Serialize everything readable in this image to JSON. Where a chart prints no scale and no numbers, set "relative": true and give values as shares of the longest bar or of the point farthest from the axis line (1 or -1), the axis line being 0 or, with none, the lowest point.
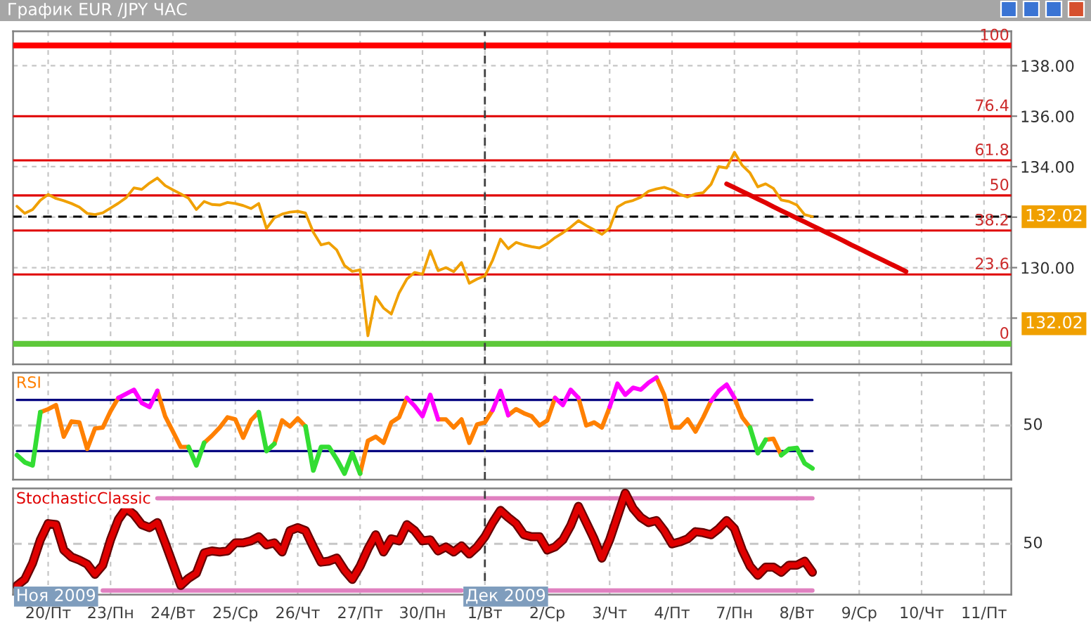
{
  "chart_data": [
    {
      "type": "line",
      "title": "График EUR /JPY ЧАС",
      "categories": [
        null,
        null,
        null,
        null,
        "20/Пт",
        null,
        null,
        null,
        null,
        null,
        null,
        null,
        "23/Пн",
        null,
        null,
        null,
        null,
        null,
        null,
        null,
        "24/Вт",
        null,
        null,
        null,
        null,
        null,
        null,
        null,
        "25/Ср",
        null,
        null,
        null,
        null,
        null,
        null,
        null,
        "26/Чт",
        null,
        null,
        null,
        null,
        null,
        null,
        null,
        "27/Пт",
        null,
        null,
        null,
        null,
        null,
        null,
        null,
        "30/Пн",
        null,
        null,
        null,
        null,
        null,
        null,
        null,
        "1/Вт",
        null,
        null,
        null,
        null,
        null,
        null,
        null,
        "2/Ср",
        null,
        null,
        null,
        null,
        null,
        null,
        null,
        "3/Чт",
        null,
        null,
        null,
        null,
        null,
        null,
        null,
        "4/Пт",
        null,
        null,
        null,
        null,
        null,
        null,
        null,
        "7/Пн",
        null,
        null,
        null,
        null,
        null,
        null,
        null,
        "8/Вт",
        null,
        null,
        null,
        null,
        null,
        null,
        null,
        "9/Ср",
        null,
        null,
        null,
        null,
        null,
        null,
        null,
        "10/Чт",
        null,
        null,
        null,
        null,
        null,
        null,
        null,
        "11/Пт",
        null,
        null,
        null
      ],
      "series": [
        {
          "color": "#f0a000",
          "values": [
            132.43,
            132.15,
            132.3,
            132.67,
            132.9,
            132.74,
            132.65,
            132.54,
            132.4,
            132.15,
            132.1,
            132.17,
            132.36,
            132.55,
            132.77,
            133.16,
            133.1,
            133.35,
            133.55,
            133.25,
            133.08,
            132.92,
            132.75,
            132.3,
            132.62,
            132.5,
            132.48,
            132.58,
            132.54,
            132.46,
            132.34,
            132.54,
            131.55,
            131.97,
            132.12,
            132.2,
            132.23,
            132.16,
            131.4,
            130.9,
            130.98,
            130.7,
            130.08,
            129.85,
            129.91,
            127.3,
            128.85,
            128.4,
            128.16,
            129.0,
            129.55,
            129.81,
            129.74,
            130.67,
            129.88,
            130.0,
            129.84,
            130.2,
            129.38,
            129.55,
            129.67,
            130.3,
            131.13,
            130.75,
            131.0,
            130.9,
            130.83,
            130.78,
            130.95,
            131.19,
            131.38,
            131.6,
            131.86,
            131.67,
            131.5,
            131.32,
            131.57,
            132.4,
            132.58,
            132.66,
            132.79,
            133.03,
            133.12,
            133.18,
            133.08,
            132.9,
            132.8,
            132.92,
            132.97,
            133.3,
            134.0,
            133.95,
            134.57,
            134.05,
            133.75,
            133.2,
            133.32,
            133.14,
            132.68,
            132.62,
            132.48,
            132.1,
            132.02,
            null,
            null,
            null,
            null,
            null,
            null,
            null,
            null,
            null,
            null,
            null,
            null,
            null,
            null,
            null,
            null,
            null,
            null,
            null,
            null,
            null,
            null,
            null,
            null,
            null
          ]
        },
        {
          "type": "line",
          "color": "#e00000",
          "values": [
            null,
            null,
            null,
            null,
            null,
            null,
            null,
            null,
            null,
            null,
            null,
            null,
            null,
            null,
            null,
            null,
            null,
            null,
            null,
            null,
            null,
            null,
            null,
            null,
            null,
            null,
            null,
            null,
            null,
            null,
            null,
            null,
            null,
            null,
            null,
            null,
            null,
            null,
            null,
            null,
            null,
            null,
            null,
            null,
            null,
            null,
            null,
            null,
            null,
            null,
            null,
            null,
            null,
            null,
            null,
            null,
            null,
            null,
            null,
            null,
            null,
            null,
            null,
            null,
            null,
            null,
            null,
            null,
            null,
            null,
            null,
            null,
            null,
            null,
            null,
            null,
            null,
            null,
            null,
            null,
            null,
            null,
            null,
            null,
            null,
            null,
            null,
            null,
            null,
            null,
            null,
            133.32,
            133.17,
            133.02,
            132.87,
            132.72,
            132.57,
            132.41,
            132.26,
            132.11,
            131.96,
            131.81,
            131.66,
            131.51,
            131.36,
            131.21,
            131.06,
            130.9,
            130.75,
            130.6,
            130.45,
            130.3,
            130.15,
            130.0,
            129.85,
            null,
            null,
            null,
            null,
            null,
            null,
            null,
            null,
            null,
            null,
            null,
            null,
            null
          ]
        }
      ],
      "ylim": [
        126.17,
        139.36
      ],
      "yticks": [
        {
          "value": 128,
          "label": null
        },
        {
          "value": 130,
          "label": "130.00"
        },
        {
          "value": 132,
          "label": null
        },
        {
          "value": 134,
          "label": "134.00"
        },
        {
          "value": 136,
          "label": "136.00"
        },
        {
          "value": 138,
          "label": "138.00"
        }
      ],
      "grid": true,
      "tick_labels": "y",
      "ref_lines": [
        {
          "axis": "y",
          "value": 138.8,
          "color": "#ff0000"
        },
        {
          "axis": "y",
          "value": 136.0,
          "color": "#e00000"
        },
        {
          "axis": "y",
          "value": 134.25,
          "color": "#e00000"
        },
        {
          "axis": "y",
          "value": 132.86,
          "color": "#e00000"
        },
        {
          "axis": "y",
          "value": 131.47,
          "color": "#e00000"
        },
        {
          "axis": "y",
          "value": 129.73,
          "color": "#e00000"
        },
        {
          "axis": "y",
          "value": 126.98,
          "color": "#5ec83a"
        },
        {
          "axis": "y",
          "value": 132.02,
          "label": "132.02",
          "color": "#000000",
          "line_style": "dashed"
        },
        {
          "axis": "x",
          "value": "1/Вт",
          "color": "#404040",
          "line_style": "dashed"
        }
      ],
      "annotations": [
        "132.02",
        {
          "text": "100",
          "y": 138.8
        },
        {
          "text": "76.4",
          "y": 136.0
        },
        {
          "text": "61.8",
          "y": 134.25
        },
        {
          "text": "50",
          "y": 132.86
        },
        {
          "text": "38.2",
          "y": 131.47
        },
        {
          "text": "23.6",
          "y": 129.73
        },
        {
          "text": "0",
          "y": 126.98
        }
      ]
    },
    {
      "type": "line",
      "title": "RSI",
      "relative": true,
      "categories": [
        null,
        null,
        null,
        null,
        "20/Пт",
        null,
        null,
        null,
        null,
        null,
        null,
        null,
        "23/Пн",
        null,
        null,
        null,
        null,
        null,
        null,
        null,
        "24/Вт",
        null,
        null,
        null,
        null,
        null,
        null,
        null,
        "25/Ср",
        null,
        null,
        null,
        null,
        null,
        null,
        null,
        "26/Чт",
        null,
        null,
        null,
        null,
        null,
        null,
        null,
        "27/Пт",
        null,
        null,
        null,
        null,
        null,
        null,
        null,
        "30/Пн",
        null,
        null,
        null,
        null,
        null,
        null,
        null,
        "1/Вт",
        null,
        null,
        null,
        null,
        null,
        null,
        null,
        "2/Ср",
        null,
        null,
        null,
        null,
        null,
        null,
        null,
        "3/Чт",
        null,
        null,
        null,
        null,
        null,
        null,
        null,
        "4/Пт",
        null,
        null,
        null,
        null,
        null,
        null,
        null,
        "7/Пн",
        null,
        null,
        null,
        null,
        null,
        null,
        null,
        "8/Вт",
        null,
        null,
        null,
        null,
        null,
        null,
        null,
        "9/Ср",
        null,
        null,
        null,
        null,
        null,
        null,
        null,
        "10/Чт",
        null,
        null,
        null,
        null,
        null,
        null,
        null,
        "11/Пт",
        null,
        null,
        null
      ],
      "series": [
        {
          "color": "#ff8000",
          "values": [
            null,
            null,
            null,
            0.66,
            0.69,
            0.73,
            0.42,
            0.57,
            0.56,
            0.3,
            0.5,
            0.51,
            0.67,
            0.8,
            null,
            null,
            null,
            null,
            0.87,
            0.62,
            0.47,
            0.32,
            0.32,
            null,
            0.36,
            0.43,
            0.51,
            0.61,
            0.59,
            0.41,
            0.58,
            0.66,
            null,
            0.35,
            0.58,
            0.52,
            0.6,
            0.52,
            null,
            null,
            null,
            null,
            null,
            null,
            0.06,
            0.38,
            0.42,
            0.36,
            0.56,
            0.61,
            0.8,
            null,
            null,
            null,
            0.59,
            0.59,
            0.51,
            0.59,
            0.36,
            0.54,
            0.56,
            0.68,
            null,
            0.63,
            0.69,
            0.65,
            0.62,
            0.53,
            0.58,
            0.8,
            null,
            null,
            0.8,
            0.53,
            0.56,
            0.51,
            0.71,
            null,
            null,
            null,
            null,
            null,
            1.0,
            0.83,
            0.51,
            0.51,
            0.59,
            0.47,
            0.61,
            0.77,
            null,
            null,
            0.8,
            0.61,
            0.51,
            null,
            0.39,
            0.4,
            0.24,
            null,
            null,
            null,
            null,
            null,
            null,
            null,
            null,
            null,
            null,
            null,
            null,
            null,
            null,
            null,
            null,
            null,
            null,
            null,
            null,
            null,
            null,
            null,
            null,
            null,
            null,
            null,
            null,
            null
          ]
        },
        {
          "color": "#ff00ff",
          "values": [
            null,
            null,
            null,
            null,
            null,
            null,
            null,
            null,
            null,
            null,
            null,
            null,
            null,
            0.8,
            0.84,
            0.88,
            0.75,
            0.71,
            0.87,
            null,
            null,
            null,
            null,
            null,
            null,
            null,
            null,
            null,
            null,
            null,
            null,
            null,
            null,
            null,
            null,
            null,
            null,
            null,
            null,
            null,
            null,
            null,
            null,
            null,
            null,
            null,
            null,
            null,
            null,
            null,
            0.8,
            0.72,
            0.62,
            0.83,
            0.59,
            null,
            null,
            null,
            null,
            null,
            null,
            0.68,
            0.87,
            0.63,
            null,
            null,
            null,
            null,
            null,
            0.8,
            0.73,
            0.88,
            0.8,
            null,
            null,
            null,
            0.71,
            0.94,
            0.83,
            0.9,
            0.88,
            0.95,
            1.0,
            null,
            null,
            null,
            null,
            null,
            null,
            0.77,
            0.87,
            0.93,
            0.8,
            null,
            null,
            null,
            null,
            null,
            null,
            null,
            null,
            null,
            null,
            null,
            null,
            null,
            null,
            null,
            null,
            null,
            null,
            null,
            null,
            null,
            null,
            null,
            null,
            null,
            null,
            null,
            null,
            null,
            null,
            null,
            null,
            null,
            null,
            null
          ]
        },
        {
          "color": "#33dd33",
          "values": [
            0.24,
            0.17,
            0.14,
            0.66,
            null,
            null,
            null,
            null,
            null,
            null,
            null,
            null,
            null,
            null,
            null,
            null,
            null,
            null,
            null,
            null,
            null,
            null,
            0.32,
            0.14,
            0.36,
            null,
            null,
            null,
            null,
            null,
            null,
            0.66,
            0.28,
            0.35,
            null,
            null,
            null,
            0.52,
            0.09,
            0.32,
            0.32,
            0.2,
            0.06,
            0.26,
            0.06,
            null,
            null,
            null,
            null,
            null,
            null,
            null,
            null,
            null,
            null,
            null,
            null,
            null,
            null,
            null,
            null,
            null,
            null,
            null,
            null,
            null,
            null,
            null,
            null,
            null,
            null,
            null,
            null,
            null,
            null,
            null,
            null,
            null,
            null,
            null,
            null,
            null,
            null,
            null,
            null,
            null,
            null,
            null,
            null,
            null,
            null,
            null,
            null,
            null,
            0.51,
            0.26,
            0.39,
            null,
            0.24,
            0.3,
            0.31,
            0.16,
            0.11,
            null,
            null,
            null,
            null,
            null,
            null,
            null,
            null,
            null,
            null,
            null,
            null,
            null,
            null,
            null,
            null,
            null,
            null,
            null,
            null,
            null,
            null,
            null,
            null,
            null
          ]
        },
        {
          "color": "#000080",
          "values": [
            0.78,
            0.78,
            0.78,
            0.78,
            0.78,
            0.78,
            0.78,
            0.78,
            0.78,
            0.78,
            0.78,
            0.78,
            0.78,
            0.78,
            0.78,
            0.78,
            0.78,
            0.78,
            0.78,
            0.78,
            0.78,
            0.78,
            0.78,
            0.78,
            0.78,
            0.78,
            0.78,
            0.78,
            0.78,
            0.78,
            0.78,
            0.78,
            0.78,
            0.78,
            0.78,
            0.78,
            0.78,
            0.78,
            0.78,
            0.78,
            0.78,
            0.78,
            0.78,
            0.78,
            0.78,
            0.78,
            0.78,
            0.78,
            0.78,
            0.78,
            0.78,
            0.78,
            0.78,
            0.78,
            0.78,
            0.78,
            0.78,
            0.78,
            0.78,
            0.78,
            0.78,
            0.78,
            0.78,
            0.78,
            0.78,
            0.78,
            0.78,
            0.78,
            0.78,
            0.78,
            0.78,
            0.78,
            0.78,
            0.78,
            0.78,
            0.78,
            0.78,
            0.78,
            0.78,
            0.78,
            0.78,
            0.78,
            0.78,
            0.78,
            0.78,
            0.78,
            0.78,
            0.78,
            0.78,
            0.78,
            0.78,
            0.78,
            0.78,
            0.78,
            0.78,
            0.78,
            0.78,
            0.78,
            0.78,
            0.78,
            0.78,
            0.78,
            0.78,
            null,
            null,
            null,
            null,
            null,
            null,
            null,
            null,
            null,
            null,
            null,
            null,
            null,
            null,
            null,
            null,
            null,
            null,
            null,
            null,
            null,
            null,
            null,
            null,
            null
          ]
        },
        {
          "color": "#000080",
          "values": [
            0.28,
            0.28,
            0.28,
            0.28,
            0.28,
            0.28,
            0.28,
            0.28,
            0.28,
            0.28,
            0.28,
            0.28,
            0.28,
            0.28,
            0.28,
            0.28,
            0.28,
            0.28,
            0.28,
            0.28,
            0.28,
            0.28,
            0.28,
            0.28,
            0.28,
            0.28,
            0.28,
            0.28,
            0.28,
            0.28,
            0.28,
            0.28,
            0.28,
            0.28,
            0.28,
            0.28,
            0.28,
            0.28,
            0.28,
            0.28,
            0.28,
            0.28,
            0.28,
            0.28,
            0.28,
            0.28,
            0.28,
            0.28,
            0.28,
            0.28,
            0.28,
            0.28,
            0.28,
            0.28,
            0.28,
            0.28,
            0.28,
            0.28,
            0.28,
            0.28,
            0.28,
            0.28,
            0.28,
            0.28,
            0.28,
            0.28,
            0.28,
            0.28,
            0.28,
            0.28,
            0.28,
            0.28,
            0.28,
            0.28,
            0.28,
            0.28,
            0.28,
            0.28,
            0.28,
            0.28,
            0.28,
            0.28,
            0.28,
            0.28,
            0.28,
            0.28,
            0.28,
            0.28,
            0.28,
            0.28,
            0.28,
            0.28,
            0.28,
            0.28,
            0.28,
            0.28,
            0.28,
            0.28,
            0.28,
            0.28,
            0.28,
            0.28,
            0.28,
            null,
            null,
            null,
            null,
            null,
            null,
            null,
            null,
            null,
            null,
            null,
            null,
            null,
            null,
            null,
            null,
            null,
            null,
            null,
            null,
            null,
            null,
            null,
            null,
            null
          ]
        }
      ],
      "grid": "x",
      "tick_labels": false,
      "ref_lines": [
        {
          "axis": "y",
          "value": 0.53,
          "color": "#c6c6c6",
          "line_style": "dashed"
        },
        {
          "axis": "x",
          "value": "1/Вт",
          "color": "#404040",
          "line_style": "dashed"
        }
      ],
      "annotations": [
        "50"
      ]
    },
    {
      "type": "line",
      "title": "StochasticClassic",
      "relative": true,
      "categories": [
        null,
        null,
        null,
        null,
        "20/Пт",
        null,
        null,
        null,
        null,
        null,
        null,
        null,
        "23/Пн",
        null,
        null,
        null,
        null,
        null,
        null,
        null,
        "24/Вт",
        null,
        null,
        null,
        null,
        null,
        null,
        null,
        "25/Ср",
        null,
        null,
        null,
        null,
        null,
        null,
        null,
        "26/Чт",
        null,
        null,
        null,
        null,
        null,
        null,
        null,
        "27/Пт",
        null,
        null,
        null,
        null,
        null,
        null,
        null,
        "30/Пн",
        null,
        null,
        null,
        null,
        null,
        null,
        null,
        "1/Вт",
        null,
        null,
        null,
        null,
        null,
        null,
        null,
        "2/Ср",
        null,
        null,
        null,
        null,
        null,
        null,
        null,
        "3/Чт",
        null,
        null,
        null,
        null,
        null,
        null,
        null,
        "4/Пт",
        null,
        null,
        null,
        null,
        null,
        null,
        null,
        "7/Пн",
        null,
        null,
        null,
        null,
        null,
        null,
        null,
        "8/Вт",
        null,
        null,
        null,
        null,
        null,
        null,
        null,
        "9/Ср",
        null,
        null,
        null,
        null,
        null,
        null,
        null,
        "10/Чт",
        null,
        null,
        null,
        null,
        null,
        null,
        null,
        "11/Пт",
        null,
        null,
        null
      ],
      "series": [
        {
          "color": "#e00000",
          "values": [
            0.09,
            0.15,
            0.31,
            0.54,
            0.7,
            0.69,
            0.44,
            0.37,
            0.34,
            0.3,
            0.2,
            0.29,
            0.54,
            0.74,
            0.85,
            0.79,
            0.69,
            0.66,
            0.71,
            0.51,
            0.3,
            0.09,
            0.16,
            0.21,
            0.41,
            0.43,
            0.42,
            0.43,
            0.51,
            0.51,
            0.53,
            0.57,
            0.49,
            0.51,
            0.42,
            0.63,
            0.66,
            0.63,
            0.47,
            0.32,
            0.33,
            0.36,
            0.24,
            0.15,
            0.28,
            0.45,
            0.59,
            0.42,
            0.55,
            0.53,
            0.69,
            0.63,
            0.53,
            0.54,
            0.43,
            0.47,
            0.42,
            0.48,
            0.4,
            0.47,
            0.57,
            0.71,
            0.83,
            0.76,
            0.7,
            0.59,
            0.57,
            0.57,
            0.44,
            0.47,
            0.54,
            0.68,
            0.87,
            0.71,
            0.55,
            0.36,
            0.54,
            0.77,
            1.0,
            0.85,
            0.76,
            0.71,
            0.73,
            0.63,
            0.5,
            0.52,
            0.55,
            0.62,
            0.61,
            0.59,
            0.65,
            0.73,
            0.65,
            0.44,
            0.28,
            0.19,
            0.27,
            0.27,
            0.22,
            0.29,
            0.29,
            0.33,
            0.22,
            null,
            null,
            null,
            null,
            null,
            null,
            null,
            null,
            null,
            null,
            null,
            null,
            null,
            null,
            null,
            null,
            null,
            null,
            null,
            null,
            null,
            null,
            null,
            null,
            null
          ]
        },
        {
          "color": "#e080c0",
          "values": [
            null,
            null,
            null,
            null,
            null,
            null,
            null,
            null,
            null,
            null,
            null,
            null,
            null,
            null,
            null,
            null,
            null,
            null,
            0.95,
            0.95,
            0.95,
            0.95,
            0.95,
            0.95,
            0.95,
            0.95,
            0.95,
            0.95,
            0.95,
            0.95,
            0.95,
            0.95,
            0.95,
            0.95,
            0.95,
            0.95,
            0.95,
            0.95,
            0.95,
            0.95,
            0.95,
            0.95,
            0.95,
            0.95,
            0.95,
            0.95,
            0.95,
            0.95,
            0.95,
            0.95,
            0.95,
            0.95,
            0.95,
            0.95,
            0.95,
            0.95,
            0.95,
            0.95,
            0.95,
            0.95,
            0.95,
            0.95,
            0.95,
            0.95,
            0.95,
            0.95,
            0.95,
            0.95,
            0.95,
            0.95,
            0.95,
            0.95,
            0.95,
            0.95,
            0.95,
            0.95,
            0.95,
            0.95,
            0.95,
            0.95,
            0.95,
            0.95,
            0.95,
            0.95,
            0.95,
            0.95,
            0.95,
            0.95,
            0.95,
            0.95,
            0.95,
            0.95,
            0.95,
            0.95,
            0.95,
            0.95,
            0.95,
            0.95,
            0.95,
            0.95,
            0.95,
            0.95,
            0.95,
            null,
            null,
            null,
            null,
            null,
            null,
            null,
            null,
            null,
            null,
            null,
            null,
            null,
            null,
            null,
            null,
            null,
            null,
            null,
            null,
            null,
            null,
            null,
            null,
            null
          ]
        },
        {
          "color": "#e080c0",
          "values": [
            null,
            null,
            null,
            null,
            null,
            null,
            null,
            null,
            null,
            null,
            null,
            0.04,
            0.04,
            0.04,
            0.04,
            0.04,
            0.04,
            0.04,
            0.04,
            0.04,
            0.04,
            0.04,
            0.04,
            0.04,
            0.04,
            0.04,
            0.04,
            0.04,
            0.04,
            0.04,
            0.04,
            0.04,
            0.04,
            0.04,
            0.04,
            0.04,
            0.04,
            0.04,
            0.04,
            0.04,
            0.04,
            0.04,
            0.04,
            0.04,
            0.04,
            0.04,
            0.04,
            0.04,
            0.04,
            0.04,
            0.04,
            0.04,
            0.04,
            0.04,
            0.04,
            0.04,
            0.04,
            0.04,
            null,
            null,
            null,
            null,
            null,
            null,
            null,
            null,
            null,
            null,
            0.04,
            0.04,
            0.04,
            0.04,
            0.04,
            0.04,
            0.04,
            0.04,
            0.04,
            0.04,
            0.04,
            0.04,
            0.04,
            0.04,
            0.04,
            0.04,
            0.04,
            0.04,
            0.04,
            0.04,
            0.04,
            0.04,
            0.04,
            0.04,
            0.04,
            0.04,
            0.04,
            0.04,
            0.04,
            0.04,
            0.04,
            0.04,
            0.04,
            0.04,
            0.04,
            null,
            null,
            null,
            null,
            null,
            null,
            null,
            null,
            null,
            null,
            null,
            null,
            null,
            null,
            null,
            null,
            null,
            null,
            null,
            null,
            null,
            null,
            null,
            null,
            null
          ]
        }
      ],
      "grid": "x",
      "tick_labels": "x",
      "ref_lines": [
        {
          "axis": "y",
          "value": 0.5,
          "color": "#c6c6c6",
          "line_style": "dashed"
        },
        {
          "axis": "x",
          "value": "1/Вт",
          "label": "Дек 2009",
          "color": "#404040",
          "line_style": "dashed"
        }
      ],
      "annotations": [
        "50",
        "Ноя 2009"
      ]
    }
  ]
}
